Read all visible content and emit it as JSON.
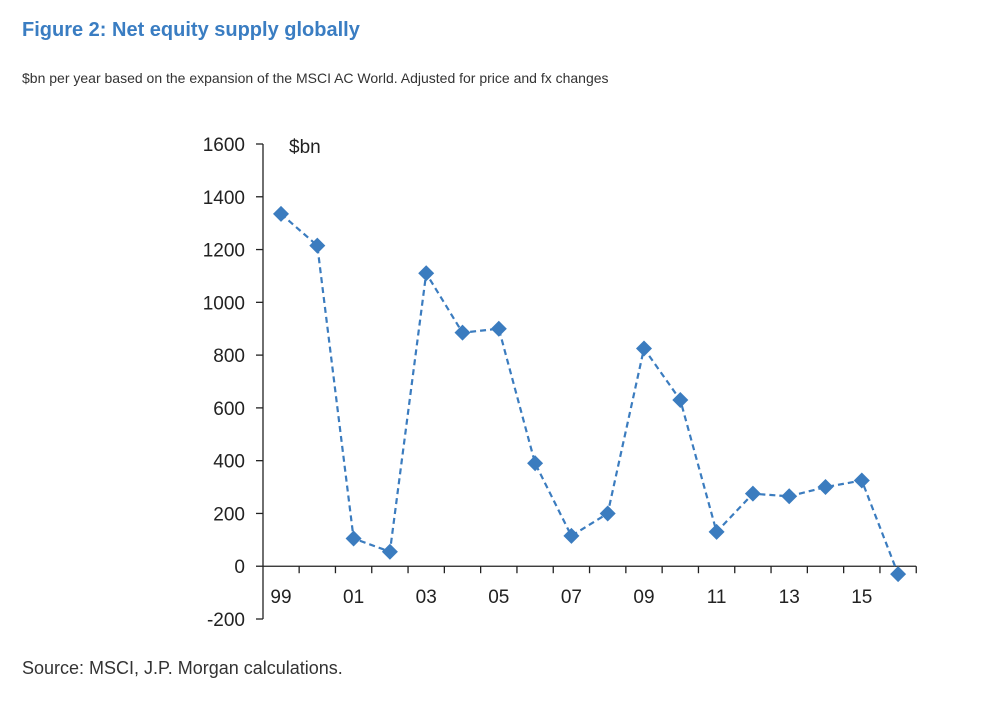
{
  "title": "Figure 2: Net equity supply globally",
  "subtitle": "$bn per year based on the expansion of the MSCI AC World. Adjusted for price and fx changes",
  "source": "Source: MSCI, J.P. Morgan calculations.",
  "colors": {
    "title": "#3a7dc2",
    "series": "#3b7cbf",
    "axis": "#222222"
  },
  "chart_data": {
    "type": "line",
    "title": "",
    "ylabel": "$bn",
    "xlabel": "",
    "ylim": [
      -200,
      1600
    ],
    "yticks": [
      1600,
      1400,
      1200,
      1000,
      800,
      600,
      400,
      200,
      0,
      -200
    ],
    "x": [
      "1999",
      "2000",
      "2001",
      "2002",
      "2003",
      "2004",
      "2005",
      "2006",
      "2007",
      "2008",
      "2009",
      "2010",
      "2011",
      "2012",
      "2013",
      "2014",
      "2015",
      "2016"
    ],
    "xticklabels": [
      "99",
      "01",
      "03",
      "05",
      "07",
      "09",
      "11",
      "13",
      "15"
    ],
    "series": [
      {
        "values": [
          1335,
          1215,
          105,
          55,
          1110,
          885,
          900,
          390,
          115,
          200,
          825,
          630,
          130,
          275,
          265,
          300,
          325,
          -30
        ],
        "line_style": "dashed",
        "marker": "diamond"
      }
    ],
    "grid": false,
    "legend": "none"
  }
}
